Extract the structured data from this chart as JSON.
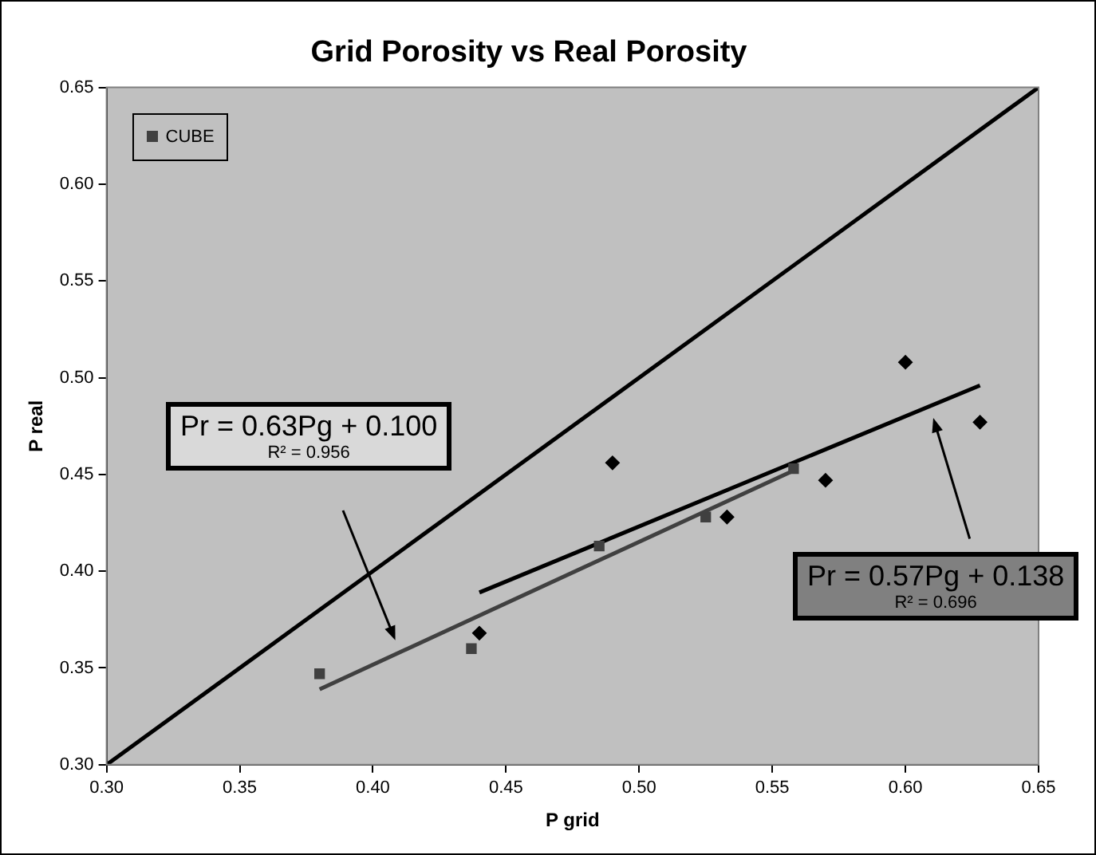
{
  "chart_data": {
    "type": "scatter",
    "title": "Grid Porosity vs Real Porosity",
    "xlabel": "P grid",
    "ylabel": "P real",
    "xlim": [
      0.3,
      0.65
    ],
    "ylim": [
      0.3,
      0.65
    ],
    "xticks": [
      {
        "value": 0.3,
        "label": "0.30"
      },
      {
        "value": 0.35,
        "label": "0.35"
      },
      {
        "value": 0.4,
        "label": "0.40"
      },
      {
        "value": 0.45,
        "label": "0.45"
      },
      {
        "value": 0.5,
        "label": "0.50"
      },
      {
        "value": 0.55,
        "label": "0.55"
      },
      {
        "value": 0.6,
        "label": "0.60"
      },
      {
        "value": 0.65,
        "label": "0.65"
      }
    ],
    "yticks": [
      {
        "value": 0.3,
        "label": "0.30"
      },
      {
        "value": 0.35,
        "label": "0.35"
      },
      {
        "value": 0.4,
        "label": "0.40"
      },
      {
        "value": 0.45,
        "label": "0.45"
      },
      {
        "value": 0.5,
        "label": "0.50"
      },
      {
        "value": 0.55,
        "label": "0.55"
      },
      {
        "value": 0.6,
        "label": "0.60"
      },
      {
        "value": 0.65,
        "label": "0.65"
      }
    ],
    "grid": false,
    "legend": "top left",
    "series": [
      {
        "type": "scatter",
        "color": "#000000",
        "marker": "diamond",
        "x": [
          0.44,
          0.49,
          0.533,
          0.57,
          0.6,
          0.628
        ],
        "values": [
          0.368,
          0.456,
          0.428,
          0.447,
          0.508,
          0.477
        ]
      },
      {
        "type": "scatter",
        "name": "CUBE",
        "color": "#404040",
        "marker": "square",
        "x": [
          0.38,
          0.437,
          0.485,
          0.525,
          0.558
        ],
        "values": [
          0.347,
          0.36,
          0.413,
          0.428,
          0.453
        ]
      },
      {
        "type": "line",
        "color": "#000000",
        "marker": "none",
        "x": [
          0.3,
          0.65
        ],
        "values": [
          0.3,
          0.65
        ]
      },
      {
        "type": "line",
        "color": "#000000",
        "marker": "none",
        "x": [
          0.44,
          0.628
        ],
        "values": [
          0.389,
          0.496
        ]
      },
      {
        "type": "line",
        "color": "#404040",
        "marker": "none",
        "x": [
          0.38,
          0.558
        ],
        "values": [
          0.339,
          0.452
        ]
      }
    ],
    "annotations": [
      "Pr = 0.63Pg + 0.100",
      "R² = 0.956",
      "Pr = 0.57Pg + 0.138",
      "R² = 0.696"
    ]
  }
}
